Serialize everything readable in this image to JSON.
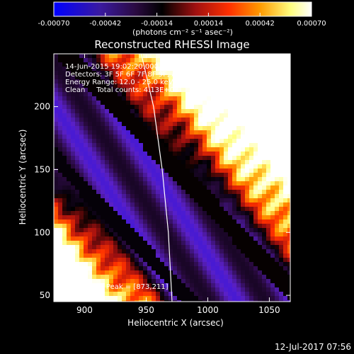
{
  "chart_data": {
    "type": "heatmap",
    "title": "Reconstructed RHESSI Image",
    "xlabel": "Heliocentric X (arcsec)",
    "ylabel": "Heliocentric Y (arcsec)",
    "xlim": [
      875,
      1067
    ],
    "ylim": [
      45,
      242
    ],
    "xticks": [
      900,
      950,
      1000,
      1050
    ],
    "yticks": [
      50,
      100,
      150,
      200
    ],
    "colorbar": {
      "min": -0.0007,
      "max": 0.0007,
      "tick_values": [
        -0.0007,
        -0.00042,
        -0.00014,
        0.00014,
        0.00042,
        0.0007
      ],
      "tick_labels": [
        "-0.00070",
        "-0.00042",
        "-0.00014",
        "0.00014",
        "0.00042",
        "0.00070"
      ],
      "units_label": "(photons cm⁻² s⁻¹ asec⁻²)",
      "colors": [
        "#0000ff",
        "#5a20c8",
        "#2a0a40",
        "#000000",
        "#a01010",
        "#ff3000",
        "#ff9a00",
        "#ffff80",
        "#ffffff"
      ]
    },
    "annotations": {
      "time_range": "14-Jun-2015 19:02:20.000 to 19:12:20.000",
      "detectors": "Detectors: 3F 5F 6F 7F 8F 9F, Att 0",
      "energy_range": "Energy Range: 12.0 - 25.0 keV",
      "clean": "Clean     Total counts: 4.13E+03",
      "peak": "Position of Peak = [873,211]"
    },
    "features": {
      "bright_corners": [
        "top-left",
        "bottom-right"
      ],
      "limb_line": [
        [
          946,
          242
        ],
        [
          956,
          200
        ],
        [
          963,
          150
        ],
        [
          968,
          100
        ],
        [
          971,
          45
        ]
      ],
      "limb_color": "#ffffff"
    }
  },
  "footer": {
    "date": "12-Jul-2017 07:56"
  }
}
